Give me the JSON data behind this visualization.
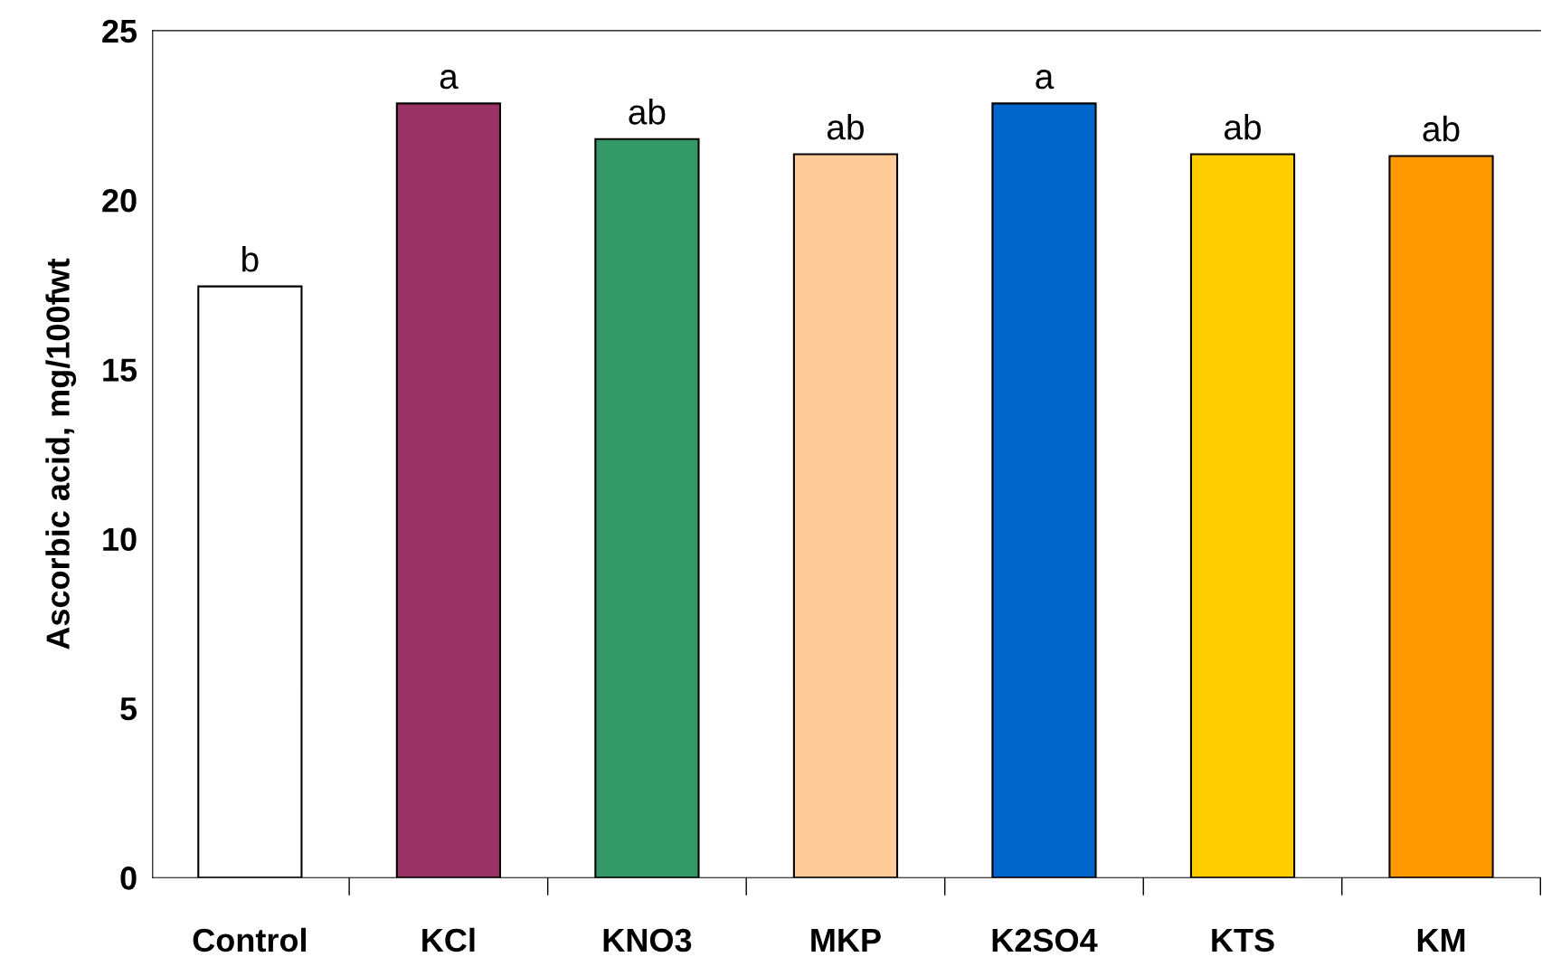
{
  "chart_data": {
    "type": "bar",
    "ylabel": "Ascorbic acid, mg/100fwt",
    "categories": [
      "Control",
      "KCl",
      "KNO3",
      "MKP",
      "K2SO4",
      "KTS",
      "KM"
    ],
    "values": [
      17.45,
      22.85,
      21.8,
      21.35,
      22.85,
      21.35,
      21.3
    ],
    "colors": [
      "#ffffff",
      "#993366",
      "#339966",
      "#ffcc99",
      "#0066cc",
      "#ffcc00",
      "#ff9900"
    ],
    "ylim": [
      0,
      25
    ],
    "yticks": [
      0,
      5,
      10,
      15,
      20,
      25
    ],
    "grid": false,
    "legend": false,
    "annotations": [
      {
        "text": "b",
        "x": "Control",
        "y": 17.45
      },
      {
        "text": "a",
        "x": "KCl",
        "y": 22.85
      },
      {
        "text": "ab",
        "x": "KNO3",
        "y": 21.8
      },
      {
        "text": "ab",
        "x": "MKP",
        "y": 21.35
      },
      {
        "text": "a",
        "x": "K2SO4",
        "y": 22.85
      },
      {
        "text": "ab",
        "x": "KTS",
        "y": 21.35
      },
      {
        "text": "ab",
        "x": "KM",
        "y": 21.3
      }
    ]
  }
}
